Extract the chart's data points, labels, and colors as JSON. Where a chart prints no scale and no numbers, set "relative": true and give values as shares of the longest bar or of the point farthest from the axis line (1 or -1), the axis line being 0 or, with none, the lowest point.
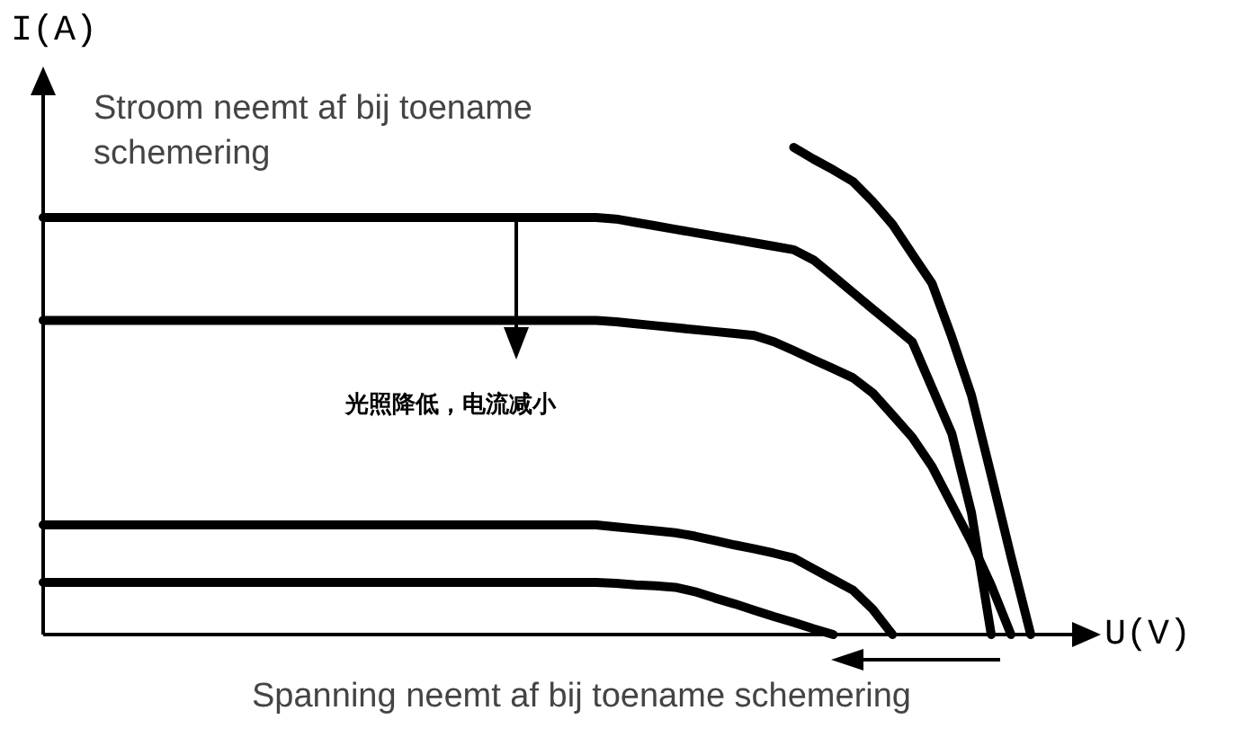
{
  "chart_data": {
    "type": "line",
    "relative": true,
    "xlabel": "U(V)",
    "ylabel": "I(A)",
    "annotations": [
      "Stroom neemt af bij toename schemering",
      "光照降低，电流减小",
      "Spanning neemt af bij toename schemering"
    ],
    "categories": [
      null,
      null,
      null,
      null,
      null,
      null,
      null,
      null,
      null,
      null,
      null,
      null,
      null,
      null,
      null,
      null,
      null,
      null,
      null,
      null,
      null,
      null,
      null,
      null,
      null,
      null,
      null,
      null,
      null,
      null,
      null,
      null,
      null,
      null,
      null,
      null,
      null,
      null,
      null,
      null,
      null,
      null,
      null,
      null,
      null,
      null,
      null,
      null,
      null,
      null,
      null
    ],
    "series": [
      {
        "color": "#000000",
        "values": [
          0.856,
          0.856,
          0.856,
          0.856,
          0.856,
          0.856,
          0.856,
          0.856,
          0.856,
          0.856,
          0.856,
          0.856,
          0.856,
          0.856,
          0.856,
          0.856,
          0.856,
          0.856,
          0.856,
          0.856,
          0.856,
          0.856,
          0.856,
          0.856,
          0.856,
          0.856,
          0.856,
          0.856,
          0.856,
          0.853,
          0.846,
          0.839,
          0.832,
          0.825,
          0.818,
          0.811,
          0.804,
          0.797,
          0.79,
          0.769,
          0.736,
          0.702,
          0.668,
          0.635,
          0.601,
          0.507,
          0.413,
          0.25,
          0,
          null,
          null
        ]
      },
      {
        "color": "#000000",
        "values": [
          0.645,
          0.645,
          0.645,
          0.645,
          0.645,
          0.645,
          0.645,
          0.645,
          0.645,
          0.645,
          0.645,
          0.645,
          0.645,
          0.645,
          0.645,
          0.645,
          0.645,
          0.645,
          0.645,
          0.645,
          0.645,
          0.645,
          0.645,
          0.645,
          0.645,
          0.645,
          0.645,
          0.645,
          0.645,
          0.642,
          0.638,
          0.634,
          0.63,
          0.626,
          0.622,
          0.618,
          0.614,
          0.601,
          0.583,
          0.564,
          0.546,
          0.527,
          0.496,
          0.451,
          0.405,
          0.345,
          0.267,
          0.189,
          0.101,
          0,
          null
        ]
      },
      {
        "color": "#000000",
        "values": [
          null,
          null,
          null,
          null,
          null,
          null,
          null,
          null,
          null,
          null,
          null,
          null,
          null,
          null,
          null,
          null,
          null,
          null,
          null,
          null,
          null,
          null,
          null,
          null,
          null,
          null,
          null,
          null,
          null,
          null,
          null,
          null,
          null,
          null,
          null,
          null,
          null,
          null,
          1.0,
          0.976,
          0.954,
          0.93,
          0.889,
          0.842,
          0.781,
          0.721,
          0.611,
          0.491,
          0.327,
          0.16,
          0
        ]
      },
      {
        "color": "#000000",
        "values": [
          0.225,
          0.225,
          0.225,
          0.225,
          0.225,
          0.225,
          0.225,
          0.225,
          0.225,
          0.225,
          0.225,
          0.225,
          0.225,
          0.225,
          0.225,
          0.225,
          0.225,
          0.225,
          0.225,
          0.225,
          0.225,
          0.225,
          0.225,
          0.225,
          0.225,
          0.225,
          0.225,
          0.225,
          0.225,
          0.221,
          0.217,
          0.213,
          0.209,
          0.202,
          0.193,
          0.184,
          0.176,
          0.167,
          0.157,
          0.135,
          0.113,
          0.091,
          0.052,
          0,
          null,
          null,
          null,
          null,
          null,
          null,
          null
        ]
      },
      {
        "color": "#000000",
        "values": [
          0.107,
          0.107,
          0.107,
          0.107,
          0.107,
          0.107,
          0.107,
          0.107,
          0.107,
          0.107,
          0.107,
          0.107,
          0.107,
          0.107,
          0.107,
          0.107,
          0.107,
          0.107,
          0.107,
          0.107,
          0.107,
          0.107,
          0.107,
          0.107,
          0.107,
          0.107,
          0.107,
          0.107,
          0.107,
          0.105,
          0.102,
          0.1,
          0.097,
          0.088,
          0.075,
          0.063,
          0.05,
          0.037,
          0.025,
          0.012,
          0,
          null,
          null,
          null,
          null,
          null,
          null,
          null,
          null,
          null,
          null
        ]
      }
    ]
  }
}
